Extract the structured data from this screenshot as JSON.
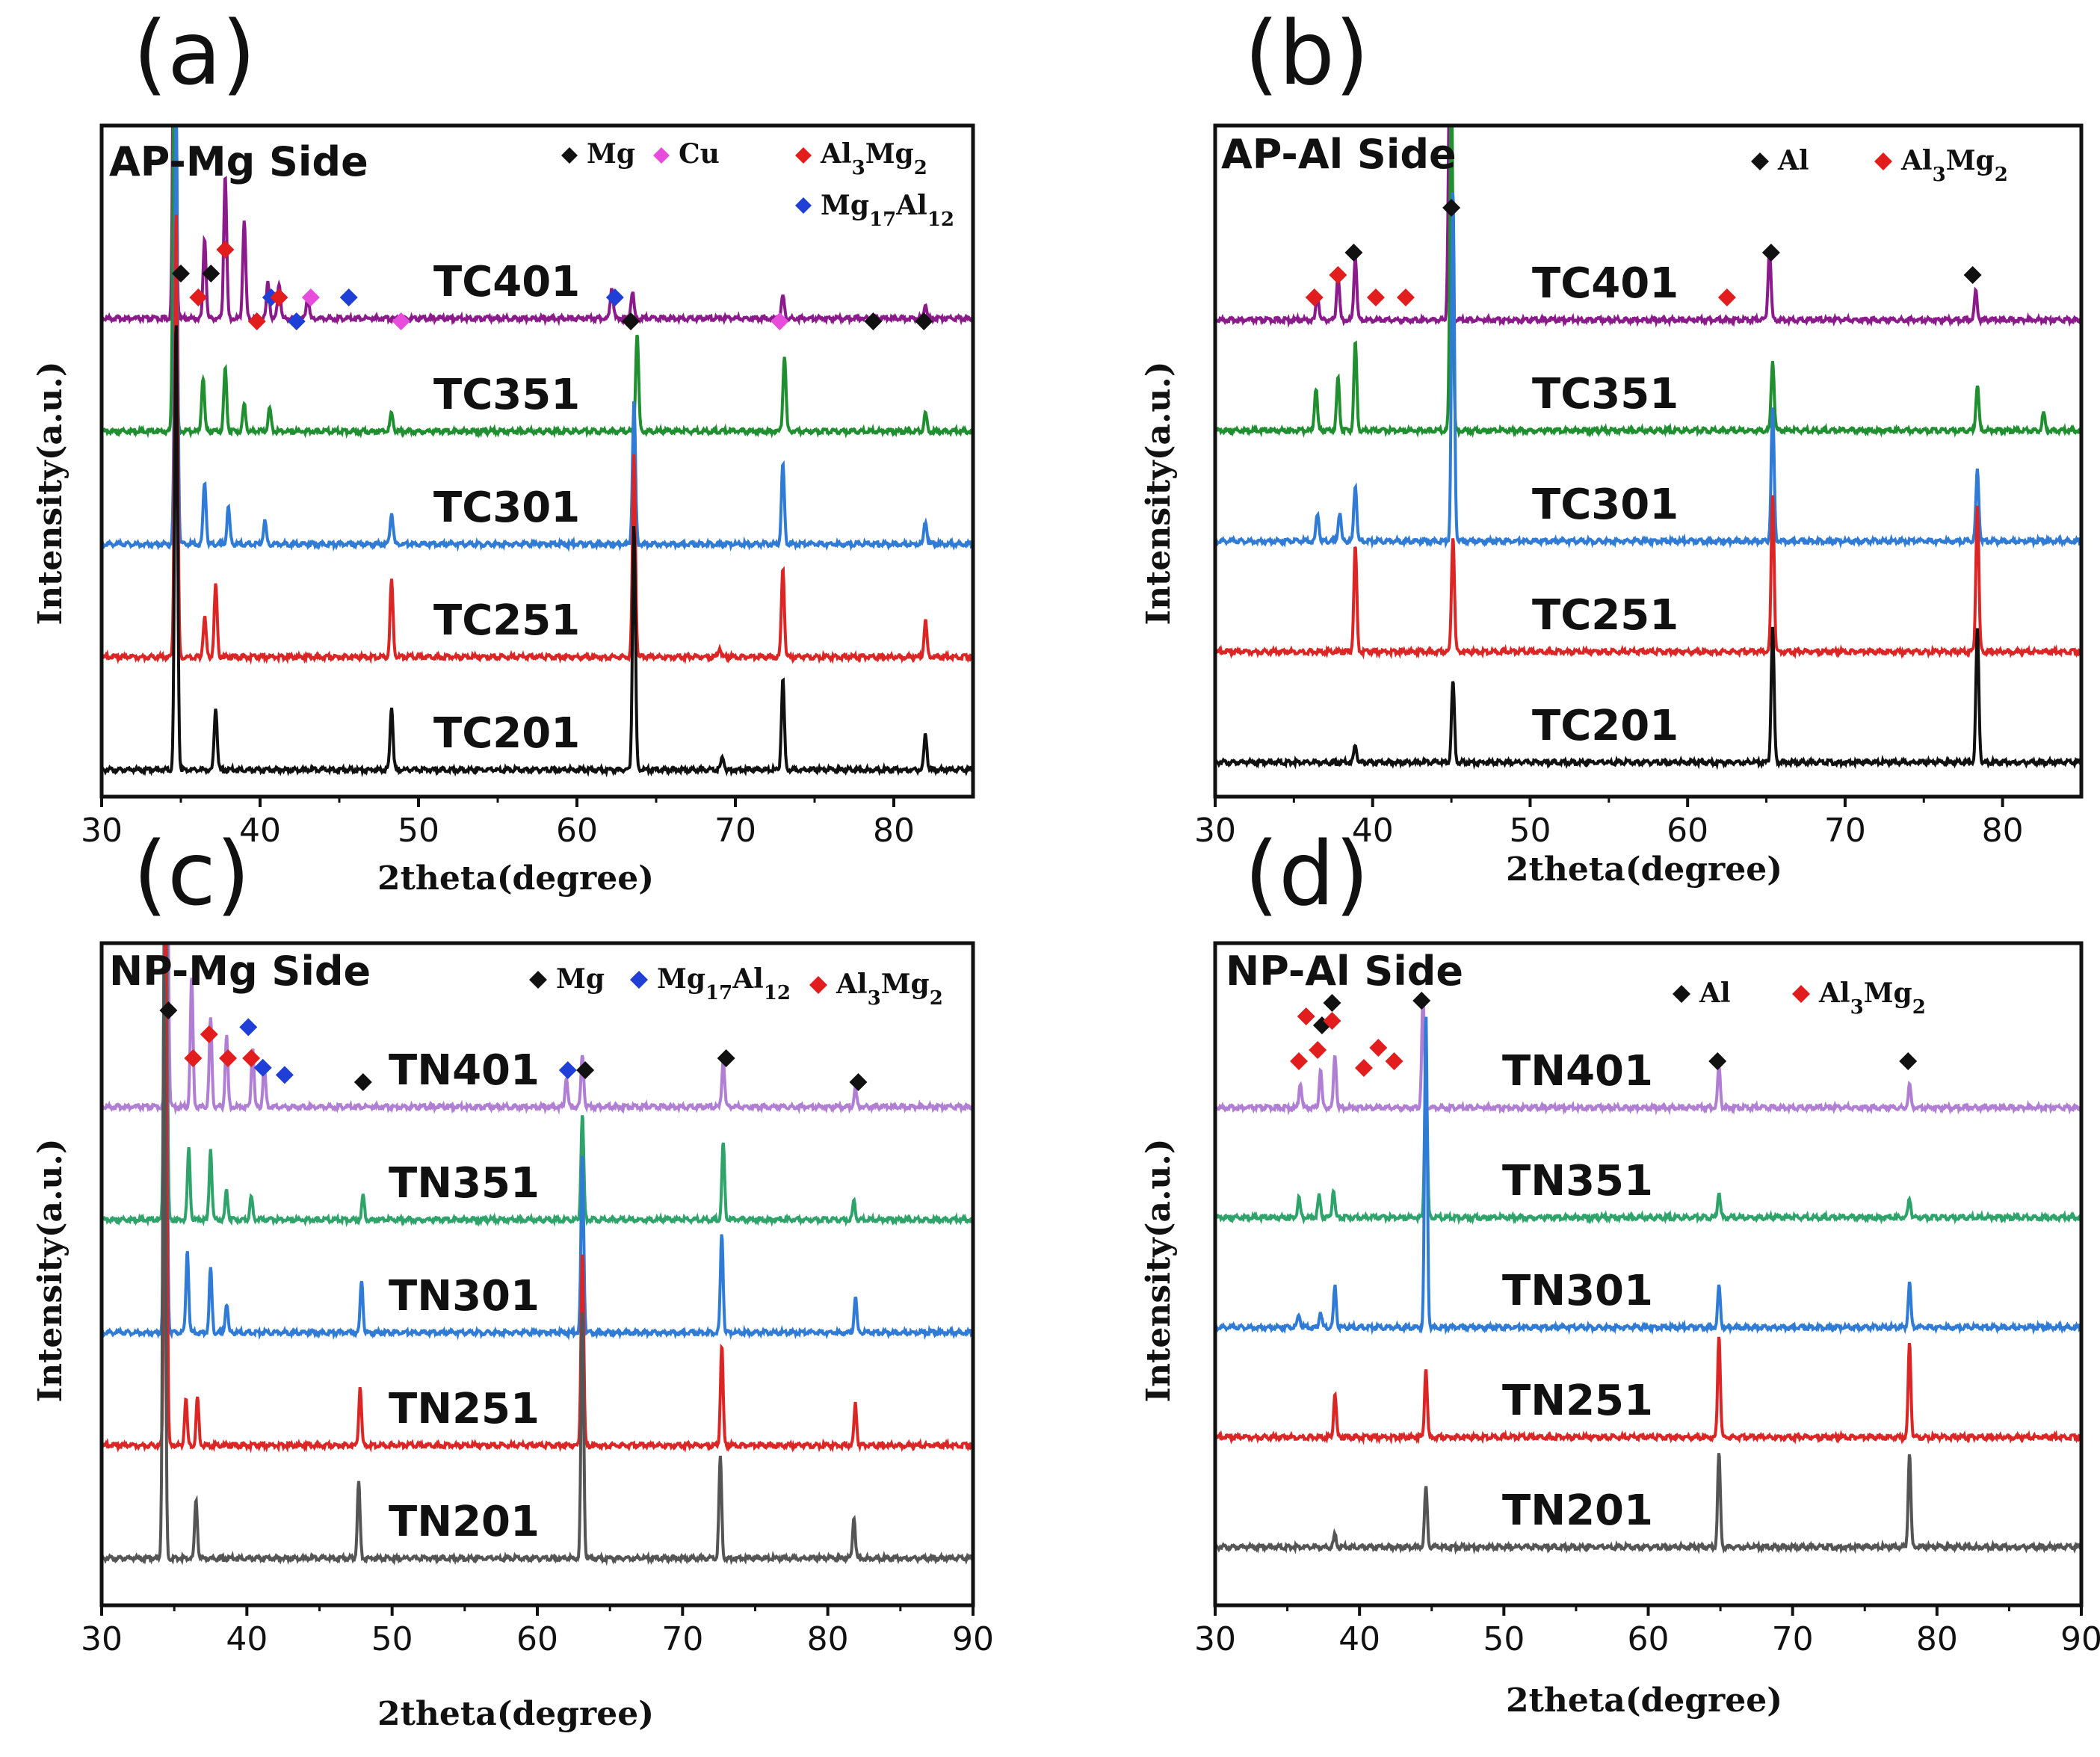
{
  "colors": {
    "black": "#111111",
    "red": "#dc2626",
    "blue": "#2f7bd6",
    "green": "#1f8f2f",
    "purple": "#8b1a8b",
    "lavender": "#b07fd4",
    "seagreen": "#2ea36a",
    "gray": "#555555",
    "magenta": "#e84cdc",
    "mk_blue": "#1f3fd6",
    "mk_red": "#e11d1d",
    "mk_black": "#111111"
  },
  "chart_data": [
    {
      "type": "line",
      "panel_label": "(a)",
      "title": "AP-Mg Side",
      "xlabel": "2theta(degree)",
      "ylabel": "Intensity(a.u.)",
      "xlim": [
        30,
        85
      ],
      "xticks": [
        30,
        40,
        50,
        60,
        70,
        80
      ],
      "legend": [
        {
          "label": "Mg",
          "color": "mk_black"
        },
        {
          "label": "Cu",
          "color": "magenta"
        },
        {
          "label": "Al3Mg2",
          "color": "mk_red"
        },
        {
          "label": "Mg17Al12",
          "color": "mk_blue"
        }
      ],
      "series": [
        {
          "name": "TC401",
          "color": "purple",
          "offset": 4,
          "peaks": [
            [
              34.6,
              1.0
            ],
            [
              36.5,
              0.18
            ],
            [
              37.8,
              0.32
            ],
            [
              39.0,
              0.22
            ],
            [
              40.5,
              0.08
            ],
            [
              41.2,
              0.08
            ],
            [
              43.0,
              0.05
            ],
            [
              62.2,
              0.07
            ],
            [
              63.5,
              0.06
            ],
            [
              73.0,
              0.05
            ],
            [
              82.0,
              0.03
            ]
          ]
        },
        {
          "name": "TC351",
          "color": "green",
          "offset": 3,
          "peaks": [
            [
              34.6,
              1.0
            ],
            [
              36.4,
              0.12
            ],
            [
              37.8,
              0.14
            ],
            [
              39.0,
              0.06
            ],
            [
              40.6,
              0.05
            ],
            [
              48.3,
              0.04
            ],
            [
              63.8,
              0.22
            ],
            [
              73.1,
              0.17
            ],
            [
              82.0,
              0.04
            ]
          ]
        },
        {
          "name": "TC301",
          "color": "blue",
          "offset": 2,
          "peaks": [
            [
              34.7,
              1.0
            ],
            [
              36.5,
              0.14
            ],
            [
              38.0,
              0.08
            ],
            [
              40.3,
              0.05
            ],
            [
              48.3,
              0.07
            ],
            [
              63.6,
              0.32
            ],
            [
              73.0,
              0.18
            ],
            [
              82.0,
              0.05
            ]
          ]
        },
        {
          "name": "TC251",
          "color": "red",
          "offset": 1,
          "peaks": [
            [
              34.7,
              1.0
            ],
            [
              36.5,
              0.09
            ],
            [
              37.2,
              0.16
            ],
            [
              48.3,
              0.17
            ],
            [
              63.6,
              0.45
            ],
            [
              69.0,
              0.02
            ],
            [
              73.0,
              0.2
            ],
            [
              82.0,
              0.08
            ]
          ]
        },
        {
          "name": "TC201",
          "color": "black",
          "offset": 0,
          "peaks": [
            [
              34.7,
              1.0
            ],
            [
              37.2,
              0.14
            ],
            [
              48.3,
              0.14
            ],
            [
              63.6,
              0.55
            ],
            [
              69.2,
              0.03
            ],
            [
              73.0,
              0.2
            ],
            [
              82.0,
              0.08
            ]
          ]
        }
      ],
      "markers": [
        {
          "x": 35.0,
          "level": 0,
          "phase": "Mg"
        },
        {
          "x": 36.1,
          "level": 1,
          "phase": "Al3Mg2"
        },
        {
          "x": 36.9,
          "level": 0,
          "phase": "Mg"
        },
        {
          "x": 37.8,
          "level": -1,
          "phase": "Al3Mg2"
        },
        {
          "x": 39.8,
          "level": 2,
          "phase": "Al3Mg2"
        },
        {
          "x": 40.7,
          "level": 1,
          "phase": "Mg17Al12"
        },
        {
          "x": 41.2,
          "level": 1,
          "phase": "Al3Mg2"
        },
        {
          "x": 42.3,
          "level": 2,
          "phase": "Mg17Al12"
        },
        {
          "x": 43.2,
          "level": 1,
          "phase": "Cu"
        },
        {
          "x": 45.6,
          "level": 1,
          "phase": "Mg17Al12"
        },
        {
          "x": 48.9,
          "level": 2,
          "phase": "Cu"
        },
        {
          "x": 62.4,
          "level": 1,
          "phase": "Mg17Al12"
        },
        {
          "x": 63.4,
          "level": 2,
          "phase": "Mg"
        },
        {
          "x": 72.8,
          "level": 2,
          "phase": "Cu"
        },
        {
          "x": 78.7,
          "level": 2,
          "phase": "Mg"
        },
        {
          "x": 81.9,
          "level": 2,
          "phase": "Mg"
        }
      ]
    },
    {
      "type": "line",
      "panel_label": "(b)",
      "title": "AP-Al Side",
      "xlabel": "2theta(degree)",
      "ylabel": "Intensity(a.u.)",
      "xlim": [
        30,
        85
      ],
      "xticks": [
        30,
        40,
        50,
        60,
        70,
        80
      ],
      "legend": [
        {
          "label": "Al",
          "color": "mk_black"
        },
        {
          "label": "Al3Mg2",
          "color": "mk_red"
        }
      ],
      "series": [
        {
          "name": "TC401",
          "color": "purple",
          "offset": 4,
          "peaks": [
            [
              36.5,
              0.07
            ],
            [
              37.8,
              0.13
            ],
            [
              38.9,
              0.18
            ],
            [
              44.9,
              0.75
            ],
            [
              65.2,
              0.2
            ],
            [
              78.3,
              0.08
            ]
          ]
        },
        {
          "name": "TC351",
          "color": "green",
          "offset": 3,
          "peaks": [
            [
              36.4,
              0.12
            ],
            [
              37.8,
              0.15
            ],
            [
              38.9,
              0.25
            ],
            [
              45.0,
              1.0
            ],
            [
              65.4,
              0.2
            ],
            [
              78.4,
              0.13
            ],
            [
              82.6,
              0.05
            ]
          ]
        },
        {
          "name": "TC301",
          "color": "blue",
          "offset": 2,
          "peaks": [
            [
              36.5,
              0.08
            ],
            [
              37.9,
              0.08
            ],
            [
              38.9,
              0.16
            ],
            [
              45.1,
              1.0
            ],
            [
              65.4,
              0.38
            ],
            [
              78.4,
              0.2
            ]
          ]
        },
        {
          "name": "TC251",
          "color": "red",
          "offset": 1,
          "peaks": [
            [
              38.9,
              0.3
            ],
            [
              45.1,
              0.33
            ],
            [
              65.4,
              0.45
            ],
            [
              78.4,
              0.42
            ]
          ]
        },
        {
          "name": "TC201",
          "color": "black",
          "offset": 0,
          "peaks": [
            [
              38.9,
              0.05
            ],
            [
              45.1,
              0.23
            ],
            [
              65.4,
              0.38
            ],
            [
              78.4,
              0.38
            ]
          ]
        }
      ],
      "markers": [
        {
          "x": 36.3,
          "level": 1,
          "phase": "Al3Mg2"
        },
        {
          "x": 37.8,
          "level": 0,
          "phase": "Al3Mg2"
        },
        {
          "x": 38.8,
          "level": -1,
          "phase": "Al"
        },
        {
          "x": 40.2,
          "level": 1,
          "phase": "Al3Mg2"
        },
        {
          "x": 42.1,
          "level": 1,
          "phase": "Al3Mg2"
        },
        {
          "x": 45.0,
          "level": -3,
          "phase": "Al"
        },
        {
          "x": 62.5,
          "level": 1,
          "phase": "Al3Mg2"
        },
        {
          "x": 65.3,
          "level": -1,
          "phase": "Al"
        },
        {
          "x": 78.1,
          "level": 0,
          "phase": "Al"
        }
      ]
    },
    {
      "type": "line",
      "panel_label": "(c)",
      "title": "NP-Mg Side",
      "xlabel": "2theta(degree)",
      "ylabel": "Intensity(a.u.)",
      "xlim": [
        30,
        90
      ],
      "xticks": [
        30,
        40,
        50,
        60,
        70,
        80,
        90
      ],
      "legend": [
        {
          "label": "Mg",
          "color": "mk_black"
        },
        {
          "label": "Mg17Al12",
          "color": "mk_blue"
        },
        {
          "label": "Al3Mg2",
          "color": "mk_red"
        }
      ],
      "series": [
        {
          "name": "TN401",
          "color": "lavender",
          "offset": 4,
          "peaks": [
            [
              34.5,
              0.55
            ],
            [
              36.2,
              0.22
            ],
            [
              37.5,
              0.15
            ],
            [
              38.6,
              0.12
            ],
            [
              40.4,
              0.1
            ],
            [
              41.2,
              0.07
            ],
            [
              62.0,
              0.05
            ],
            [
              63.1,
              0.09
            ],
            [
              72.8,
              0.08
            ],
            [
              81.9,
              0.03
            ]
          ]
        },
        {
          "name": "TN351",
          "color": "seagreen",
          "offset": 3,
          "peaks": [
            [
              34.4,
              1.0
            ],
            [
              36.0,
              0.12
            ],
            [
              37.5,
              0.12
            ],
            [
              38.6,
              0.05
            ],
            [
              40.3,
              0.04
            ],
            [
              48.0,
              0.04
            ],
            [
              63.1,
              0.18
            ],
            [
              72.8,
              0.13
            ],
            [
              81.8,
              0.03
            ]
          ]
        },
        {
          "name": "TN301",
          "color": "blue",
          "offset": 2,
          "peaks": [
            [
              34.4,
              1.0
            ],
            [
              35.9,
              0.14
            ],
            [
              37.5,
              0.11
            ],
            [
              38.6,
              0.05
            ],
            [
              47.9,
              0.09
            ],
            [
              63.1,
              0.3
            ],
            [
              72.7,
              0.17
            ],
            [
              81.9,
              0.06
            ]
          ]
        },
        {
          "name": "TN251",
          "color": "red",
          "offset": 1,
          "peaks": [
            [
              34.4,
              1.0
            ],
            [
              35.8,
              0.08
            ],
            [
              36.6,
              0.08
            ],
            [
              47.8,
              0.1
            ],
            [
              63.1,
              0.33
            ],
            [
              72.7,
              0.17
            ],
            [
              81.9,
              0.07
            ]
          ]
        },
        {
          "name": "TN201",
          "color": "gray",
          "offset": 0,
          "peaks": [
            [
              34.3,
              1.0
            ],
            [
              36.5,
              0.1
            ],
            [
              47.7,
              0.13
            ],
            [
              63.1,
              0.42
            ],
            [
              72.6,
              0.17
            ],
            [
              81.8,
              0.07
            ]
          ]
        }
      ],
      "markers": [
        {
          "x": 34.6,
          "level": -2,
          "phase": "Mg"
        },
        {
          "x": 36.3,
          "level": 0,
          "phase": "Al3Mg2"
        },
        {
          "x": 37.4,
          "level": -1,
          "phase": "Al3Mg2"
        },
        {
          "x": 38.7,
          "level": 0,
          "phase": "Al3Mg2"
        },
        {
          "x": 40.1,
          "level": -1.3,
          "phase": "Mg17Al12"
        },
        {
          "x": 40.3,
          "level": 0,
          "phase": "Al3Mg2"
        },
        {
          "x": 41.1,
          "level": 0.4,
          "phase": "Mg17Al12"
        },
        {
          "x": 42.6,
          "level": 0.7,
          "phase": "Mg17Al12"
        },
        {
          "x": 48.0,
          "level": 1,
          "phase": "Mg"
        },
        {
          "x": 62.1,
          "level": 0.5,
          "phase": "Mg17Al12"
        },
        {
          "x": 63.3,
          "level": 0.5,
          "phase": "Mg"
        },
        {
          "x": 73.0,
          "level": 0,
          "phase": "Mg"
        },
        {
          "x": 82.1,
          "level": 1,
          "phase": "Mg"
        }
      ]
    },
    {
      "type": "line",
      "panel_label": "(d)",
      "title": "NP-Al Side",
      "xlabel": "2theta(degree)",
      "ylabel": "Intensity(a.u.)",
      "xlim": [
        30,
        90
      ],
      "xticks": [
        30,
        40,
        50,
        60,
        70,
        80,
        90
      ],
      "legend": [
        {
          "label": "Al",
          "color": "mk_black"
        },
        {
          "label": "Al3Mg2",
          "color": "mk_red"
        }
      ],
      "series": [
        {
          "name": "TN401",
          "color": "lavender",
          "offset": 4,
          "peaks": [
            [
              35.9,
              0.08
            ],
            [
              37.3,
              0.12
            ],
            [
              38.3,
              0.17
            ],
            [
              44.4,
              0.35
            ],
            [
              64.9,
              0.13
            ],
            [
              78.1,
              0.07
            ]
          ]
        },
        {
          "name": "TN351",
          "color": "seagreen",
          "offset": 3,
          "peaks": [
            [
              35.8,
              0.06
            ],
            [
              37.2,
              0.07
            ],
            [
              38.2,
              0.09
            ],
            [
              44.6,
              0.5
            ],
            [
              64.9,
              0.08
            ],
            [
              78.1,
              0.06
            ]
          ]
        },
        {
          "name": "TN301",
          "color": "blue",
          "offset": 2,
          "peaks": [
            [
              35.8,
              0.04
            ],
            [
              37.3,
              0.05
            ],
            [
              38.3,
              0.13
            ],
            [
              44.6,
              1.0
            ],
            [
              64.9,
              0.13
            ],
            [
              78.1,
              0.14
            ]
          ]
        },
        {
          "name": "TN251",
          "color": "red",
          "offset": 1,
          "peaks": [
            [
              38.3,
              0.14
            ],
            [
              44.6,
              0.22
            ],
            [
              64.9,
              0.33
            ],
            [
              78.1,
              0.3
            ]
          ]
        },
        {
          "name": "TN201",
          "color": "gray",
          "offset": 0,
          "peaks": [
            [
              38.3,
              0.04
            ],
            [
              44.6,
              0.19
            ],
            [
              64.9,
              0.3
            ],
            [
              78.1,
              0.3
            ]
          ]
        }
      ],
      "markers": [
        {
          "x": 35.8,
          "level": 0,
          "phase": "Al3Mg2"
        },
        {
          "x": 36.3,
          "level": -2,
          "phase": "Al3Mg2"
        },
        {
          "x": 37.1,
          "level": -0.5,
          "phase": "Al3Mg2"
        },
        {
          "x": 37.4,
          "level": -1.6,
          "phase": "Al"
        },
        {
          "x": 38.1,
          "level": -2.6,
          "phase": "Al"
        },
        {
          "x": 38.1,
          "level": -1.8,
          "phase": "Al3Mg2"
        },
        {
          "x": 40.3,
          "level": 0.3,
          "phase": "Al3Mg2"
        },
        {
          "x": 41.3,
          "level": -0.6,
          "phase": "Al3Mg2"
        },
        {
          "x": 42.4,
          "level": 0,
          "phase": "Al3Mg2"
        },
        {
          "x": 44.3,
          "level": -2.7,
          "phase": "Al"
        },
        {
          "x": 64.8,
          "level": 0,
          "phase": "Al"
        },
        {
          "x": 78.0,
          "level": 0,
          "phase": "Al"
        }
      ]
    }
  ]
}
